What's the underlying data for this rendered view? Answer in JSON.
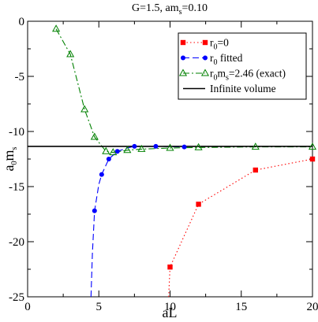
{
  "chart_data": {
    "type": "line",
    "title_parts": [
      {
        "text": "G=1.5, am",
        "sub": false
      },
      {
        "text": "s",
        "sub": true
      },
      {
        "text": "=0.10",
        "sub": false
      }
    ],
    "xlabel_text": "aL",
    "ylabel_parts": [
      {
        "text": "a",
        "sub": false
      },
      {
        "text": "0",
        "sub": true
      },
      {
        "text": "m",
        "sub": false
      },
      {
        "text": "s",
        "sub": true
      }
    ],
    "xlim": [
      0,
      20
    ],
    "ylim": [
      -25,
      0
    ],
    "x_ticks": [
      0,
      5,
      10,
      15,
      20
    ],
    "y_ticks": [
      0,
      -5,
      -10,
      -15,
      -20,
      -25
    ],
    "x_tick_labels": [
      "0",
      "5",
      "10",
      "15",
      "20"
    ],
    "y_tick_labels": [
      "0",
      "-5",
      "-10",
      "-15",
      "-20",
      "-25"
    ],
    "legend_position": "top-right",
    "series": [
      {
        "legend_parts": [
          {
            "text": "r",
            "sub": false
          },
          {
            "text": "0",
            "sub": true
          },
          {
            "text": "=0",
            "sub": false
          }
        ],
        "color": "#ff0000",
        "marker": "square",
        "line": "dotted",
        "points": [
          [
            10,
            -22.3
          ],
          [
            12,
            -16.6
          ],
          [
            16,
            -13.5
          ],
          [
            20,
            -12.5
          ]
        ],
        "curve": [
          [
            9.9,
            -25
          ],
          [
            10,
            -22.3
          ],
          [
            12,
            -16.6
          ],
          [
            16,
            -13.5
          ],
          [
            20,
            -12.5
          ]
        ]
      },
      {
        "legend_parts": [
          {
            "text": "r",
            "sub": false
          },
          {
            "text": "0",
            "sub": true
          },
          {
            "text": " fitted",
            "sub": false
          }
        ],
        "color": "#0000ff",
        "marker": "circle",
        "line": "dashed",
        "points": [
          [
            4.7,
            -17.2
          ],
          [
            5.2,
            -13.9
          ],
          [
            5.7,
            -12.5
          ],
          [
            6.3,
            -11.8
          ],
          [
            7.5,
            -11.35
          ],
          [
            9,
            -11.35
          ],
          [
            11,
            -11.4
          ]
        ],
        "curve": [
          [
            4.45,
            -25
          ],
          [
            4.55,
            -21
          ],
          [
            4.7,
            -17.2
          ],
          [
            5.0,
            -14.8
          ],
          [
            5.2,
            -13.9
          ],
          [
            5.7,
            -12.5
          ],
          [
            6.3,
            -11.8
          ],
          [
            7.0,
            -11.5
          ],
          [
            7.5,
            -11.35
          ],
          [
            9,
            -11.35
          ],
          [
            11,
            -11.4
          ]
        ]
      },
      {
        "legend_parts": [
          {
            "text": "r",
            "sub": false
          },
          {
            "text": "0",
            "sub": true
          },
          {
            "text": "m",
            "sub": false
          },
          {
            "text": "s",
            "sub": true
          },
          {
            "text": "=2.46 (exact)",
            "sub": false
          }
        ],
        "color": "#008000",
        "marker": "triangle-open",
        "line": "dash-dot",
        "points": [
          [
            2,
            -0.7
          ],
          [
            3,
            -3
          ],
          [
            4,
            -8
          ],
          [
            4.7,
            -10.5
          ],
          [
            5.5,
            -11.8
          ],
          [
            6,
            -11.9
          ],
          [
            7,
            -11.7
          ],
          [
            8,
            -11.6
          ],
          [
            10,
            -11.5
          ],
          [
            12,
            -11.45
          ],
          [
            16,
            -11.4
          ],
          [
            20,
            -11.4
          ]
        ],
        "curve": [
          [
            2,
            -0.7
          ],
          [
            3,
            -3
          ],
          [
            4,
            -8
          ],
          [
            4.7,
            -10.5
          ],
          [
            5.5,
            -11.8
          ],
          [
            6,
            -11.9
          ],
          [
            7,
            -11.7
          ],
          [
            8,
            -11.6
          ],
          [
            10,
            -11.5
          ],
          [
            12,
            -11.45
          ],
          [
            16,
            -11.4
          ],
          [
            20,
            -11.4
          ]
        ]
      },
      {
        "legend_parts": [
          {
            "text": "Infinite volume",
            "sub": false
          }
        ],
        "color": "#000000",
        "marker": "none",
        "line": "solid",
        "points": [],
        "curve": [
          [
            0,
            -11.35
          ],
          [
            20,
            -11.35
          ]
        ]
      }
    ]
  }
}
